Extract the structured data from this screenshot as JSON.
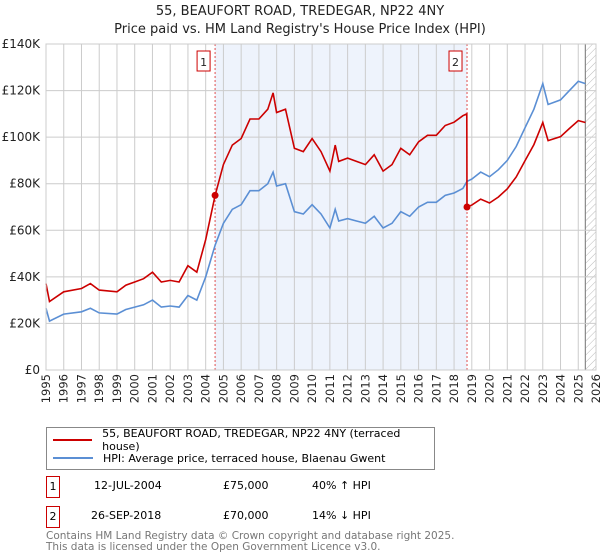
{
  "chart_data": {
    "type": "line",
    "title": "55, BEAUFORT ROAD, TREDEGAR, NP22 4NY",
    "subtitle": "Price paid vs. HM Land Registry's House Price Index (HPI)",
    "xlim": [
      1995,
      2026
    ],
    "ylim": [
      0,
      140000
    ],
    "y_ticks": [
      {
        "v": 0,
        "label": "£0"
      },
      {
        "v": 20000,
        "label": "£20K"
      },
      {
        "v": 40000,
        "label": "£40K"
      },
      {
        "v": 60000,
        "label": "£60K"
      },
      {
        "v": 80000,
        "label": "£80K"
      },
      {
        "v": 100000,
        "label": "£100K"
      },
      {
        "v": 120000,
        "label": "£120K"
      },
      {
        "v": 140000,
        "label": "£140K"
      }
    ],
    "x_ticks": [
      "1995",
      "1996",
      "1997",
      "1998",
      "1999",
      "2000",
      "2001",
      "2002",
      "2003",
      "2004",
      "2005",
      "2006",
      "2007",
      "2008",
      "2009",
      "2010",
      "2011",
      "2012",
      "2013",
      "2014",
      "2015",
      "2016",
      "2017",
      "2018",
      "2019",
      "2020",
      "2021",
      "2022",
      "2023",
      "2024",
      "2025",
      "2026"
    ],
    "grid": true,
    "colors": {
      "red": "#cc0000",
      "blue": "#5b8fd4",
      "shade": "#eef3fc"
    },
    "shaded_period": [
      2004.53,
      2018.73
    ],
    "forecast_hatch_from": 2025.4,
    "series": [
      {
        "name": "55, BEAUFORT ROAD, TREDEGAR, NP22 4NY (terraced house)",
        "color": "#cc0000",
        "x": [
          1995,
          1995.2,
          1996,
          1997,
          1997.5,
          1998,
          1999,
          1999.5,
          2000,
          2000.5,
          2001,
          2001.5,
          2002,
          2002.5,
          2003,
          2003.5,
          2004,
          2004.53,
          2005,
          2005.5,
          2006,
          2006.5,
          2007,
          2007.5,
          2007.8,
          2008,
          2008.5,
          2009,
          2009.5,
          2010,
          2010.5,
          2011,
          2011.3,
          2011.5,
          2012,
          2012.5,
          2013,
          2013.5,
          2014,
          2014.5,
          2015,
          2015.5,
          2016,
          2016.5,
          2017,
          2017.5,
          2018,
          2018.5,
          2018.72,
          2018.73,
          2019,
          2019.5,
          2020,
          2020.5,
          2021,
          2021.5,
          2022,
          2022.5,
          2023,
          2023.3,
          2024,
          2024.5,
          2025,
          2025.4
        ],
        "y": [
          37100,
          29400,
          33600,
          35000,
          37100,
          34300,
          33600,
          36400,
          37800,
          39200,
          42000,
          37800,
          38500,
          37800,
          44800,
          42000,
          56000,
          75000,
          88200,
          96600,
          99400,
          107800,
          107800,
          112000,
          119000,
          110600,
          112000,
          95200,
          93800,
          99400,
          93800,
          85400,
          96600,
          89600,
          91000,
          89600,
          88200,
          92400,
          85400,
          88200,
          95200,
          92400,
          98000,
          100800,
          100800,
          105000,
          106400,
          109200,
          110000,
          70000,
          70800,
          73400,
          71700,
          74300,
          77800,
          82900,
          89900,
          96800,
          106300,
          98500,
          100200,
          103700,
          107100,
          106300
        ]
      },
      {
        "name": "HPI: Average price, terraced house, Blaenau Gwent",
        "color": "#5b8fd4",
        "x": [
          1995,
          1995.2,
          1996,
          1997,
          1997.5,
          1998,
          1999,
          1999.5,
          2000,
          2000.5,
          2001,
          2001.5,
          2002,
          2002.5,
          2003,
          2003.5,
          2004,
          2004.53,
          2005,
          2005.5,
          2006,
          2006.5,
          2007,
          2007.5,
          2007.8,
          2008,
          2008.5,
          2009,
          2009.5,
          2010,
          2010.5,
          2011,
          2011.3,
          2011.5,
          2012,
          2012.5,
          2013,
          2013.5,
          2014,
          2014.5,
          2015,
          2015.5,
          2016,
          2016.5,
          2017,
          2017.5,
          2018,
          2018.5,
          2018.73,
          2019,
          2019.5,
          2020,
          2020.5,
          2021,
          2021.5,
          2022,
          2022.5,
          2023,
          2023.3,
          2024,
          2024.5,
          2025,
          2025.4
        ],
        "y": [
          26500,
          21000,
          24000,
          25000,
          26500,
          24500,
          24000,
          26000,
          27000,
          28000,
          30000,
          27000,
          27500,
          27000,
          32000,
          30000,
          40000,
          53600,
          63000,
          69000,
          71000,
          77000,
          77000,
          80000,
          85000,
          79000,
          80000,
          68000,
          67000,
          71000,
          67000,
          61000,
          69000,
          64000,
          65000,
          64000,
          63000,
          66000,
          61000,
          63000,
          68000,
          66000,
          70000,
          72000,
          72000,
          75000,
          76000,
          78000,
          81000,
          82000,
          85000,
          83000,
          86000,
          90000,
          96000,
          104000,
          112000,
          123000,
          114000,
          116000,
          120000,
          124000,
          123000
        ]
      }
    ],
    "markers": [
      {
        "label": "1",
        "x": 2004.53,
        "y": 75000
      },
      {
        "label": "2",
        "x": 2018.73,
        "y": 70000
      }
    ]
  },
  "legend": {
    "red_label": "55, BEAUFORT ROAD, TREDEGAR, NP22 4NY (terraced house)",
    "blue_label": "HPI: Average price, terraced house, Blaenau Gwent"
  },
  "transactions": [
    {
      "num": "1",
      "date": "12-JUL-2004",
      "price": "£75,000",
      "hpi": "40% ↑ HPI"
    },
    {
      "num": "2",
      "date": "26-SEP-2018",
      "price": "£70,000",
      "hpi": "14% ↓ HPI"
    }
  ],
  "footer": {
    "line1": "Contains HM Land Registry data © Crown copyright and database right 2025.",
    "line2": "This data is licensed under the Open Government Licence v3.0."
  }
}
